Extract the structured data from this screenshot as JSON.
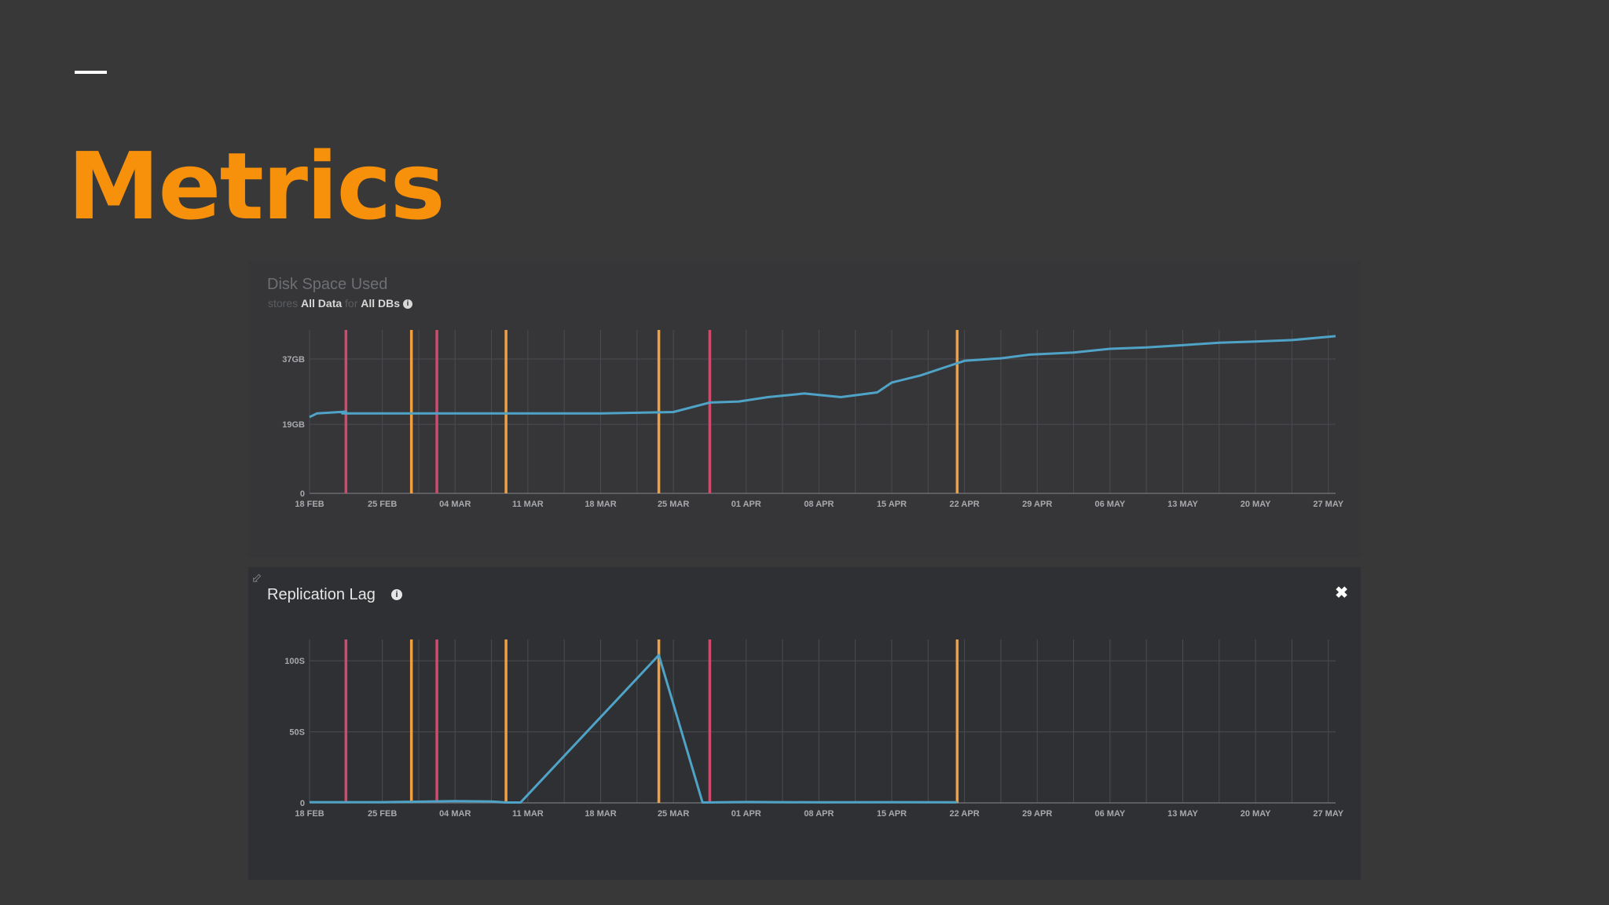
{
  "slide": {
    "title": "Metrics"
  },
  "panels": {
    "disk": {
      "title": "Disk Space Used",
      "subtitle_prefix": "stores",
      "subtitle_data": "All Data",
      "subtitle_for": "for",
      "subtitle_dbs": "All DBs",
      "info_icon": "i"
    },
    "lag": {
      "title": "Replication Lag",
      "info_icon": "i",
      "close_icon": "✖",
      "resize_icon": "⬃"
    }
  },
  "colors": {
    "line": "#4fa3c7",
    "marker_pink": "#cf4b6e",
    "marker_orange": "#f0a040",
    "grid": "#4a4c50"
  },
  "chart_data": [
    {
      "type": "line",
      "title": "Disk Space Used",
      "x_ticks": [
        "18 FEB",
        "25 FEB",
        "04 MAR",
        "11 MAR",
        "18 MAR",
        "25 MAR",
        "01 APR",
        "08 APR",
        "15 APR",
        "22 APR",
        "29 APR",
        "06 MAY",
        "13 MAY",
        "20 MAY",
        "27 MAY"
      ],
      "y_ticks": [
        "0",
        "19GB",
        "37GB"
      ],
      "xlim": [
        0,
        14.1
      ],
      "ylim": [
        0,
        45
      ],
      "series": [
        {
          "x": [
            0,
            0.1,
            0.5,
            0.45,
            0.5,
            1.0,
            2.0,
            3.0,
            4.0,
            5.0,
            5.5,
            5.9,
            6.3,
            6.8,
            7.3,
            7.8,
            8.0,
            8.4,
            8.7,
            9.0,
            9.5,
            9.9,
            10.5,
            11.0,
            11.5,
            12.0,
            12.5,
            13.0,
            13.5,
            14.1
          ],
          "y": [
            21,
            22,
            22.5,
            22,
            22,
            22,
            22,
            22,
            22,
            22.4,
            25.0,
            25.3,
            26.5,
            27.5,
            26.5,
            27.8,
            30.5,
            32.5,
            34.5,
            36.5,
            37.2,
            38.2,
            38.8,
            39.8,
            40.2,
            40.8,
            41.5,
            41.8,
            42.2,
            43.3
          ]
        }
      ],
      "markers_pink": [
        0.5,
        1.75,
        5.5
      ],
      "markers_orange": [
        1.4,
        2.7,
        4.8,
        8.9
      ]
    },
    {
      "type": "line",
      "title": "Replication Lag",
      "x_ticks": [
        "18 FEB",
        "25 FEB",
        "04 MAR",
        "11 MAR",
        "18 MAR",
        "25 MAR",
        "01 APR",
        "08 APR",
        "15 APR",
        "22 APR",
        "29 APR",
        "06 MAY",
        "13 MAY",
        "20 MAY",
        "27 MAY"
      ],
      "y_ticks": [
        "0",
        "50S",
        "100S"
      ],
      "xlim": [
        0,
        14.1
      ],
      "ylim": [
        0,
        115
      ],
      "series": [
        {
          "x": [
            0,
            1.0,
            1.4,
            2.0,
            2.5,
            2.7,
            2.9,
            4.8,
            5.4,
            6.0,
            7.0,
            8.0,
            8.9
          ],
          "y": [
            0.5,
            0.5,
            0.8,
            1.2,
            1.0,
            0.3,
            0.3,
            104,
            0.3,
            0.6,
            0.4,
            0.5,
            0.4
          ]
        }
      ],
      "markers_pink": [
        0.5,
        1.75,
        5.5
      ],
      "markers_orange": [
        1.4,
        2.7,
        4.8,
        8.9
      ]
    }
  ]
}
